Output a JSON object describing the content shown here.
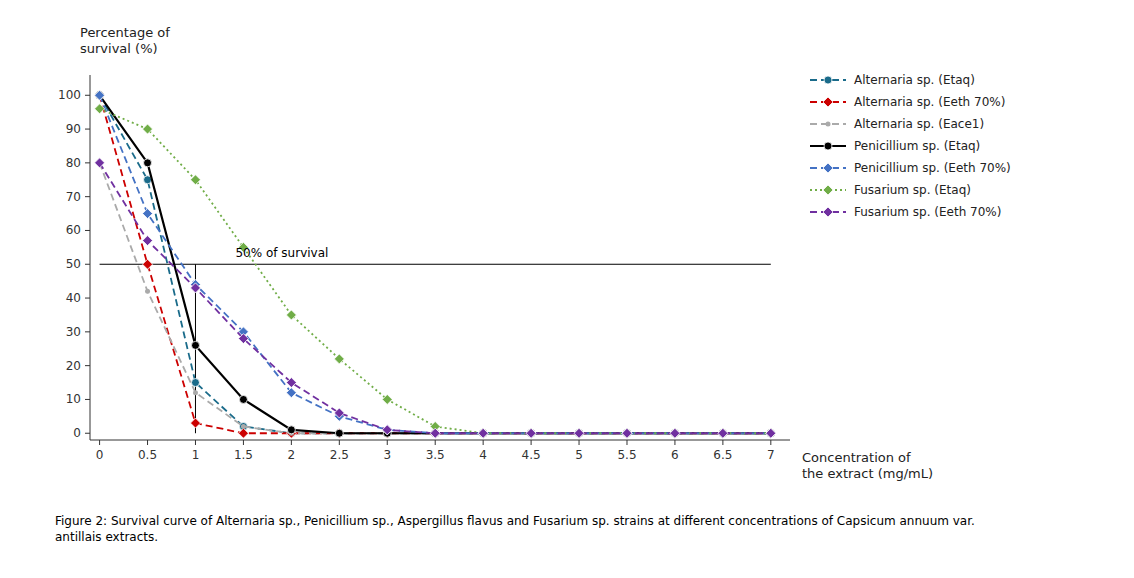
{
  "chart_data": {
    "type": "line",
    "xlabel": "Concentration of\nthe extract (mg/mL)",
    "ylabel": "Percentage of\nsurvival (%)",
    "caption": "Figure 2: Survival curve of Alternaria sp., Penicillium sp., Aspergillus flavus and Fusarium sp. strains at different concentrations of Capsicum annuum var.\nantillais extracts.",
    "x": [
      0,
      0.5,
      1,
      1.5,
      2,
      2.5,
      3,
      3.5,
      4,
      4.5,
      5,
      5.5,
      6,
      6.5,
      7
    ],
    "xlim": [
      -0.1,
      7.2
    ],
    "ylim": [
      -2,
      106
    ],
    "xticks": [
      0,
      0.5,
      1,
      1.5,
      2,
      2.5,
      3,
      3.5,
      4,
      4.5,
      5,
      5.5,
      6,
      6.5,
      7
    ],
    "yticks": [
      0,
      10,
      20,
      30,
      40,
      50,
      60,
      70,
      80,
      90,
      100
    ],
    "grid": false,
    "legend": "right",
    "hline": {
      "y": 50,
      "x": [
        0,
        7
      ],
      "label": "50% of survival"
    },
    "vline": {
      "x": 1,
      "y": [
        0,
        50
      ]
    },
    "series": [
      {
        "name": "Alternaria sp. (Etaq)",
        "color": "#1A6B8A",
        "line_style": "dashed",
        "marker": "circle",
        "values": [
          100,
          75,
          15,
          2,
          0,
          0,
          0,
          0,
          0,
          0,
          0,
          0,
          0,
          0,
          0
        ]
      },
      {
        "name": "Alternaria sp. (Eeth 70%)",
        "color": "#CC0000",
        "line_style": "dashed",
        "marker": "diamond",
        "values": [
          100,
          50,
          3,
          0,
          0,
          0,
          0,
          0,
          0,
          0,
          0,
          0,
          0,
          0,
          0
        ]
      },
      {
        "name": "Alternaria sp. (Eace1)",
        "color": "#AAAAAA",
        "line_style": "dashed",
        "marker": "point",
        "values": [
          80,
          42,
          12,
          2,
          0,
          0,
          0,
          0,
          0,
          0,
          0,
          0,
          0,
          0,
          0
        ]
      },
      {
        "name": "Penicillium sp. (Etaq)",
        "color": "#000000",
        "line_style": "solid",
        "marker": "circle",
        "values": [
          100,
          80,
          26,
          10,
          1,
          0,
          0,
          0,
          0,
          0,
          0,
          0,
          0,
          0,
          0
        ]
      },
      {
        "name": "Penicillium sp. (Eeth 70%)",
        "color": "#4472C4",
        "line_style": "dashed",
        "marker": "diamond",
        "values": [
          100,
          65,
          44,
          30,
          12,
          5,
          1,
          0,
          0,
          0,
          0,
          0,
          0,
          0,
          0
        ]
      },
      {
        "name": "Fusarium sp. (Etaq)",
        "color": "#70AD47",
        "line_style": "dotted",
        "marker": "diamond",
        "values": [
          96,
          90,
          75,
          55,
          35,
          22,
          10,
          2,
          0,
          0,
          0,
          0,
          0,
          0,
          0
        ]
      },
      {
        "name": "Fusarium sp. (Eeth 70%)",
        "color": "#7030A0",
        "line_style": "dashed",
        "marker": "diamond",
        "values": [
          80,
          57,
          43,
          28,
          15,
          6,
          1,
          0,
          0,
          0,
          0,
          0,
          0,
          0,
          0
        ]
      }
    ]
  }
}
